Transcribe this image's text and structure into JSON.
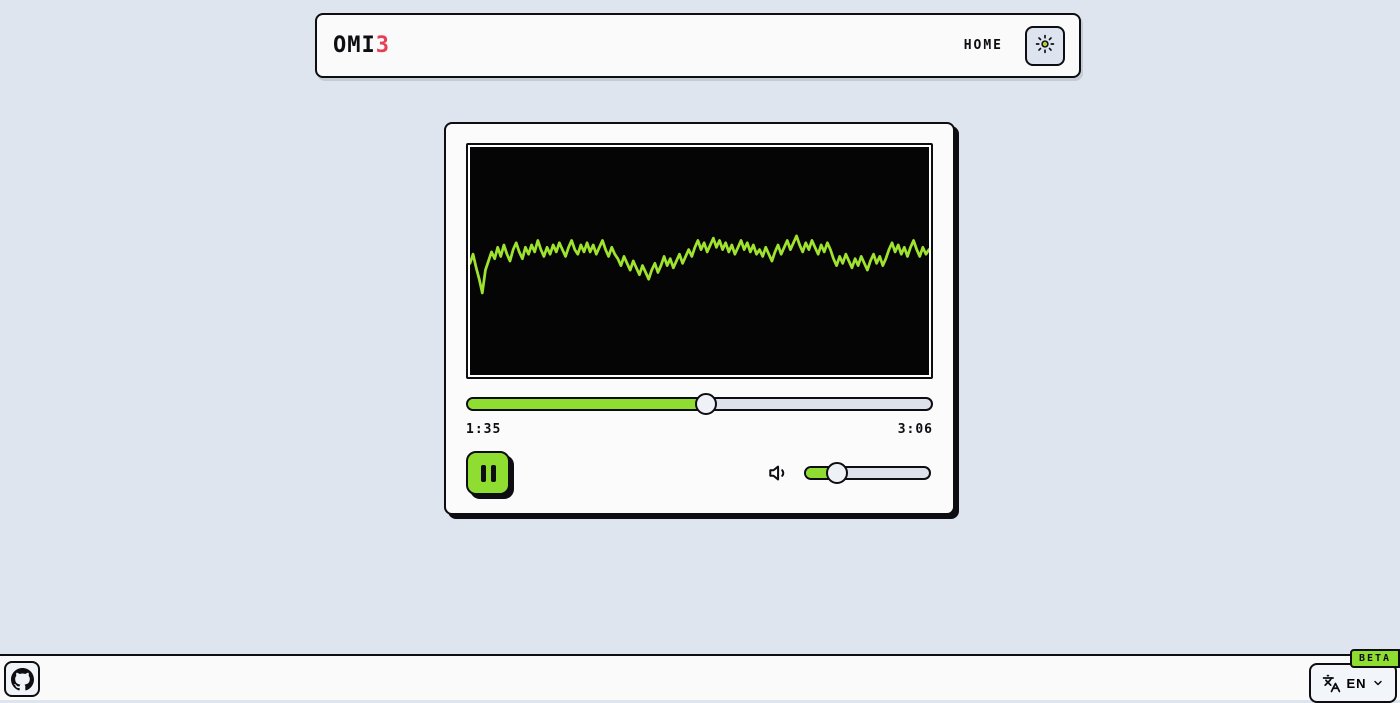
{
  "colors": {
    "background": "#dee5ef",
    "surface": "#fafafa",
    "border_dark": "#0d0d12",
    "accent_green": "#8edd30",
    "accent_red": "#e83d52",
    "track_gray": "#dde1ea",
    "canvas_black": "#050505"
  },
  "header": {
    "logo": {
      "text": "OMI",
      "accent": "3"
    },
    "home_label": "HOME"
  },
  "player": {
    "waveform": {
      "color": "#9fe32f",
      "points": [
        51,
        47,
        53,
        58,
        64,
        54,
        50,
        46,
        49,
        44,
        48,
        43,
        47,
        50,
        45,
        42,
        46,
        49,
        44,
        47,
        43,
        46,
        41,
        45,
        48,
        44,
        47,
        43,
        46,
        42,
        45,
        48,
        44,
        41,
        45,
        47,
        43,
        46,
        42,
        46,
        43,
        47,
        44,
        41,
        45,
        48,
        44,
        47,
        49,
        52,
        48,
        51,
        54,
        50,
        53,
        56,
        52,
        55,
        58,
        54,
        51,
        55,
        52,
        48,
        52,
        49,
        53,
        50,
        47,
        51,
        48,
        45,
        48,
        44,
        41,
        45,
        42,
        46,
        43,
        40,
        44,
        41,
        45,
        42,
        46,
        43,
        47,
        44,
        41,
        45,
        42,
        46,
        43,
        47,
        45,
        48,
        44,
        47,
        50,
        46,
        43,
        47,
        44,
        41,
        45,
        42,
        39,
        43,
        46,
        42,
        45,
        41,
        44,
        47,
        43,
        46,
        42,
        45,
        49,
        52,
        48,
        51,
        47,
        50,
        53,
        49,
        52,
        48,
        51,
        54,
        50,
        47,
        51,
        48,
        52,
        49,
        45,
        42,
        46,
        43,
        47,
        44,
        48,
        44,
        41,
        45,
        48,
        44,
        47,
        45
      ]
    },
    "progress": {
      "value_percent": 51.4,
      "current_time": "1:35",
      "total_time": "3:06"
    },
    "volume": {
      "value_percent": 26
    }
  },
  "footer": {
    "beta_label": "BETA",
    "language": {
      "selected": "EN"
    }
  }
}
